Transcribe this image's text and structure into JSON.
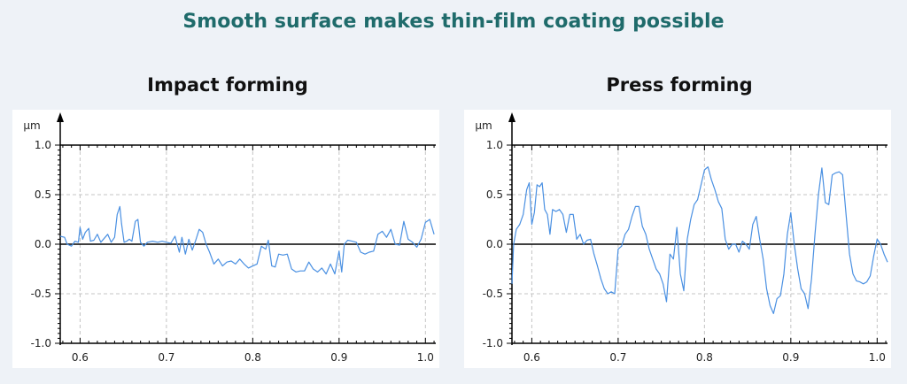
{
  "page": {
    "title": "Smooth surface makes thin-film coating possible"
  },
  "chart_data": [
    {
      "type": "line",
      "title": "Impact forming",
      "ylabel": "µm",
      "xlim": [
        0.577,
        1.012
      ],
      "ylim": [
        -1.0,
        1.0
      ],
      "xticks": [
        "0.6",
        "0.7",
        "0.8",
        "0.9",
        "1.0"
      ],
      "yticks": [
        "-1.0",
        "-0.5",
        "0.0",
        "0.5",
        "1.0"
      ],
      "grid": true,
      "line_color": "#4a90e2",
      "series": [
        {
          "x": [
            0.577,
            0.582,
            0.585,
            0.59,
            0.594,
            0.598,
            0.6,
            0.603,
            0.606,
            0.61,
            0.612,
            0.616,
            0.62,
            0.624,
            0.628,
            0.632,
            0.636,
            0.64,
            0.643,
            0.646,
            0.648,
            0.651,
            0.654,
            0.657,
            0.66,
            0.664,
            0.667,
            0.67,
            0.674,
            0.678,
            0.684,
            0.69,
            0.695,
            0.7,
            0.705,
            0.71,
            0.715,
            0.718,
            0.722,
            0.726,
            0.73,
            0.734,
            0.738,
            0.742,
            0.746,
            0.75,
            0.755,
            0.76,
            0.765,
            0.77,
            0.775,
            0.78,
            0.785,
            0.79,
            0.795,
            0.8,
            0.805,
            0.81,
            0.815,
            0.818,
            0.822,
            0.826,
            0.83,
            0.835,
            0.84,
            0.845,
            0.85,
            0.855,
            0.86,
            0.865,
            0.87,
            0.875,
            0.88,
            0.885,
            0.89,
            0.895,
            0.9,
            0.903,
            0.906,
            0.91,
            0.915,
            0.92,
            0.925,
            0.93,
            0.935,
            0.94,
            0.945,
            0.95,
            0.955,
            0.96,
            0.965,
            0.97,
            0.975,
            0.98,
            0.985,
            0.99,
            0.995,
            1.0,
            1.005,
            1.01
          ],
          "values": [
            0.08,
            0.07,
            0.0,
            -0.02,
            0.03,
            0.02,
            0.17,
            0.05,
            0.12,
            0.16,
            0.03,
            0.04,
            0.1,
            0.02,
            0.06,
            0.1,
            0.02,
            0.07,
            0.3,
            0.38,
            0.21,
            0.02,
            0.03,
            0.05,
            0.03,
            0.23,
            0.25,
            0.02,
            -0.02,
            0.02,
            0.03,
            0.02,
            0.03,
            0.02,
            0.01,
            0.08,
            -0.08,
            0.07,
            -0.1,
            0.05,
            -0.06,
            0.04,
            0.15,
            0.12,
            0.0,
            -0.08,
            -0.2,
            -0.15,
            -0.22,
            -0.18,
            -0.17,
            -0.2,
            -0.15,
            -0.2,
            -0.24,
            -0.22,
            -0.2,
            -0.02,
            -0.05,
            0.04,
            -0.22,
            -0.23,
            -0.1,
            -0.11,
            -0.1,
            -0.25,
            -0.28,
            -0.27,
            -0.27,
            -0.18,
            -0.25,
            -0.28,
            -0.24,
            -0.3,
            -0.2,
            -0.3,
            -0.07,
            -0.28,
            0.0,
            0.04,
            0.03,
            0.02,
            -0.08,
            -0.1,
            -0.08,
            -0.07,
            0.1,
            0.13,
            0.07,
            0.15,
            0.0,
            -0.01,
            0.23,
            0.05,
            0.02,
            -0.03,
            0.05,
            0.22,
            0.25,
            0.1
          ]
        }
      ]
    },
    {
      "type": "line",
      "title": "Press forming",
      "ylabel": "µm",
      "xlim": [
        0.577,
        1.012
      ],
      "ylim": [
        -1.0,
        1.0
      ],
      "xticks": [
        "0.6",
        "0.7",
        "0.8",
        "0.9",
        "1.0"
      ],
      "yticks": [
        "-1.0",
        "-0.5",
        "0.0",
        "0.5",
        "1.0"
      ],
      "grid": true,
      "line_color": "#4a90e2",
      "series": [
        {
          "x": [
            0.577,
            0.579,
            0.582,
            0.586,
            0.59,
            0.594,
            0.597,
            0.6,
            0.603,
            0.606,
            0.609,
            0.612,
            0.615,
            0.618,
            0.621,
            0.624,
            0.628,
            0.632,
            0.636,
            0.64,
            0.644,
            0.648,
            0.652,
            0.656,
            0.66,
            0.664,
            0.668,
            0.672,
            0.676,
            0.68,
            0.684,
            0.688,
            0.692,
            0.696,
            0.7,
            0.704,
            0.708,
            0.712,
            0.716,
            0.72,
            0.724,
            0.728,
            0.732,
            0.736,
            0.74,
            0.744,
            0.748,
            0.752,
            0.756,
            0.76,
            0.764,
            0.768,
            0.772,
            0.776,
            0.78,
            0.784,
            0.788,
            0.792,
            0.796,
            0.8,
            0.804,
            0.808,
            0.812,
            0.816,
            0.82,
            0.824,
            0.828,
            0.832,
            0.836,
            0.84,
            0.844,
            0.848,
            0.852,
            0.856,
            0.86,
            0.864,
            0.868,
            0.872,
            0.876,
            0.88,
            0.884,
            0.888,
            0.892,
            0.896,
            0.9,
            0.904,
            0.908,
            0.912,
            0.916,
            0.92,
            0.924,
            0.928,
            0.932,
            0.936,
            0.94,
            0.944,
            0.948,
            0.952,
            0.956,
            0.96,
            0.964,
            0.968,
            0.972,
            0.976,
            0.98,
            0.984,
            0.988,
            0.992,
            0.996,
            1.0,
            1.004,
            1.008,
            1.012
          ],
          "values": [
            -0.4,
            0.0,
            0.15,
            0.2,
            0.3,
            0.55,
            0.62,
            0.2,
            0.32,
            0.6,
            0.58,
            0.62,
            0.35,
            0.3,
            0.1,
            0.35,
            0.33,
            0.35,
            0.3,
            0.12,
            0.3,
            0.3,
            0.05,
            0.1,
            0.0,
            0.04,
            0.05,
            -0.1,
            -0.22,
            -0.35,
            -0.45,
            -0.5,
            -0.48,
            -0.5,
            -0.05,
            -0.02,
            0.1,
            0.15,
            0.28,
            0.38,
            0.38,
            0.18,
            0.1,
            -0.05,
            -0.15,
            -0.25,
            -0.3,
            -0.4,
            -0.58,
            -0.1,
            -0.15,
            0.17,
            -0.3,
            -0.47,
            0.05,
            0.25,
            0.4,
            0.45,
            0.6,
            0.75,
            0.78,
            0.65,
            0.55,
            0.43,
            0.36,
            0.05,
            -0.05,
            0.0,
            0.0,
            -0.08,
            0.03,
            0.0,
            -0.05,
            0.2,
            0.28,
            0.05,
            -0.15,
            -0.45,
            -0.62,
            -0.7,
            -0.55,
            -0.52,
            -0.3,
            0.1,
            0.32,
            0.0,
            -0.25,
            -0.45,
            -0.5,
            -0.65,
            -0.35,
            0.1,
            0.5,
            0.77,
            0.42,
            0.4,
            0.7,
            0.72,
            0.73,
            0.7,
            0.3,
            -0.1,
            -0.3,
            -0.37,
            -0.38,
            -0.4,
            -0.38,
            -0.32,
            -0.12,
            0.05,
            0.0,
            -0.1,
            -0.18
          ]
        }
      ]
    }
  ]
}
